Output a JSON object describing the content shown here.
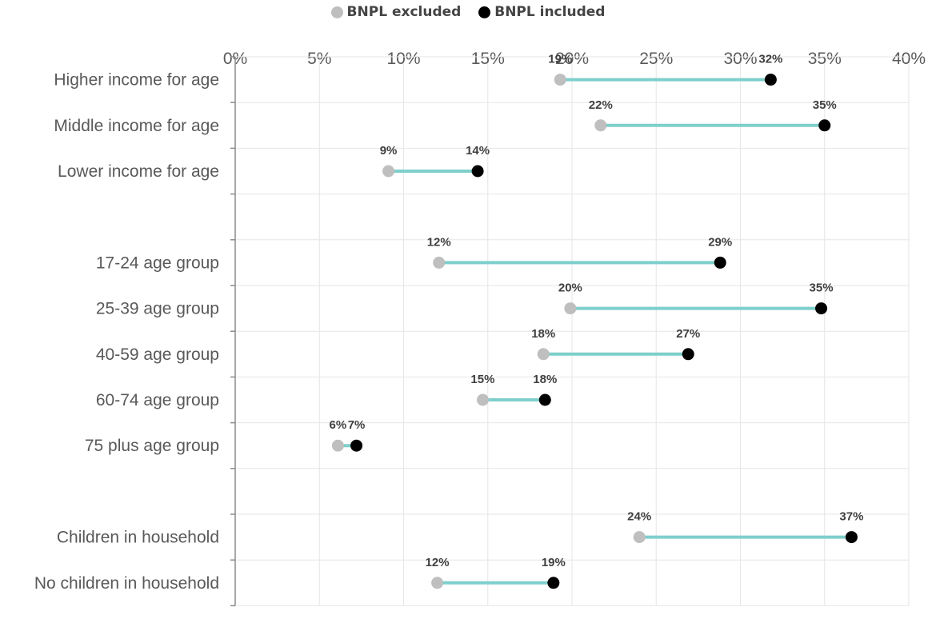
{
  "chart_data": {
    "type": "dumbbell",
    "legend": {
      "position": "top-center",
      "items": [
        {
          "label": "BNPL excluded",
          "color": "#bfbfbf"
        },
        {
          "label": "BNPL included",
          "color": "#000000"
        }
      ]
    },
    "x_axis": {
      "min": 0,
      "max": 40,
      "step": 5,
      "tick_labels": [
        "0%",
        "5%",
        "10%",
        "15%",
        "20%",
        "25%",
        "30%",
        "35%",
        "40%"
      ],
      "gridlines": true
    },
    "series": [
      {
        "name": "BNPL excluded",
        "color": "#bfbfbf"
      },
      {
        "name": "BNPL included",
        "color": "#000000"
      }
    ],
    "connector_color": "#7ecfcb",
    "categories": [
      {
        "label": "Higher income for age",
        "excluded": 19.3,
        "included": 31.8,
        "excluded_label": "19%",
        "included_label": "32%"
      },
      {
        "label": "Middle income for age",
        "excluded": 21.7,
        "included": 35.0,
        "excluded_label": "22%",
        "included_label": "35%"
      },
      {
        "label": "Lower income for age",
        "excluded": 9.1,
        "included": 14.4,
        "excluded_label": "9%",
        "included_label": "14%"
      },
      {
        "label": "",
        "excluded": null,
        "included": null,
        "excluded_label": "",
        "included_label": ""
      },
      {
        "label": "17-24 age group",
        "excluded": 12.1,
        "included": 28.8,
        "excluded_label": "12%",
        "included_label": "29%"
      },
      {
        "label": "25-39 age group",
        "excluded": 19.9,
        "included": 34.8,
        "excluded_label": "20%",
        "included_label": "35%"
      },
      {
        "label": "40-59 age group",
        "excluded": 18.3,
        "included": 26.9,
        "excluded_label": "18%",
        "included_label": "27%"
      },
      {
        "label": "60-74 age group",
        "excluded": 14.7,
        "included": 18.4,
        "excluded_label": "15%",
        "included_label": "18%"
      },
      {
        "label": "75 plus age group",
        "excluded": 6.1,
        "included": 7.2,
        "excluded_label": "6%",
        "included_label": "7%"
      },
      {
        "label": "",
        "excluded": null,
        "included": null,
        "excluded_label": "",
        "included_label": ""
      },
      {
        "label": "Children in household",
        "excluded": 24.0,
        "included": 36.6,
        "excluded_label": "24%",
        "included_label": "37%"
      },
      {
        "label": "No children in household",
        "excluded": 12.0,
        "included": 18.9,
        "excluded_label": "12%",
        "included_label": "19%"
      }
    ]
  }
}
